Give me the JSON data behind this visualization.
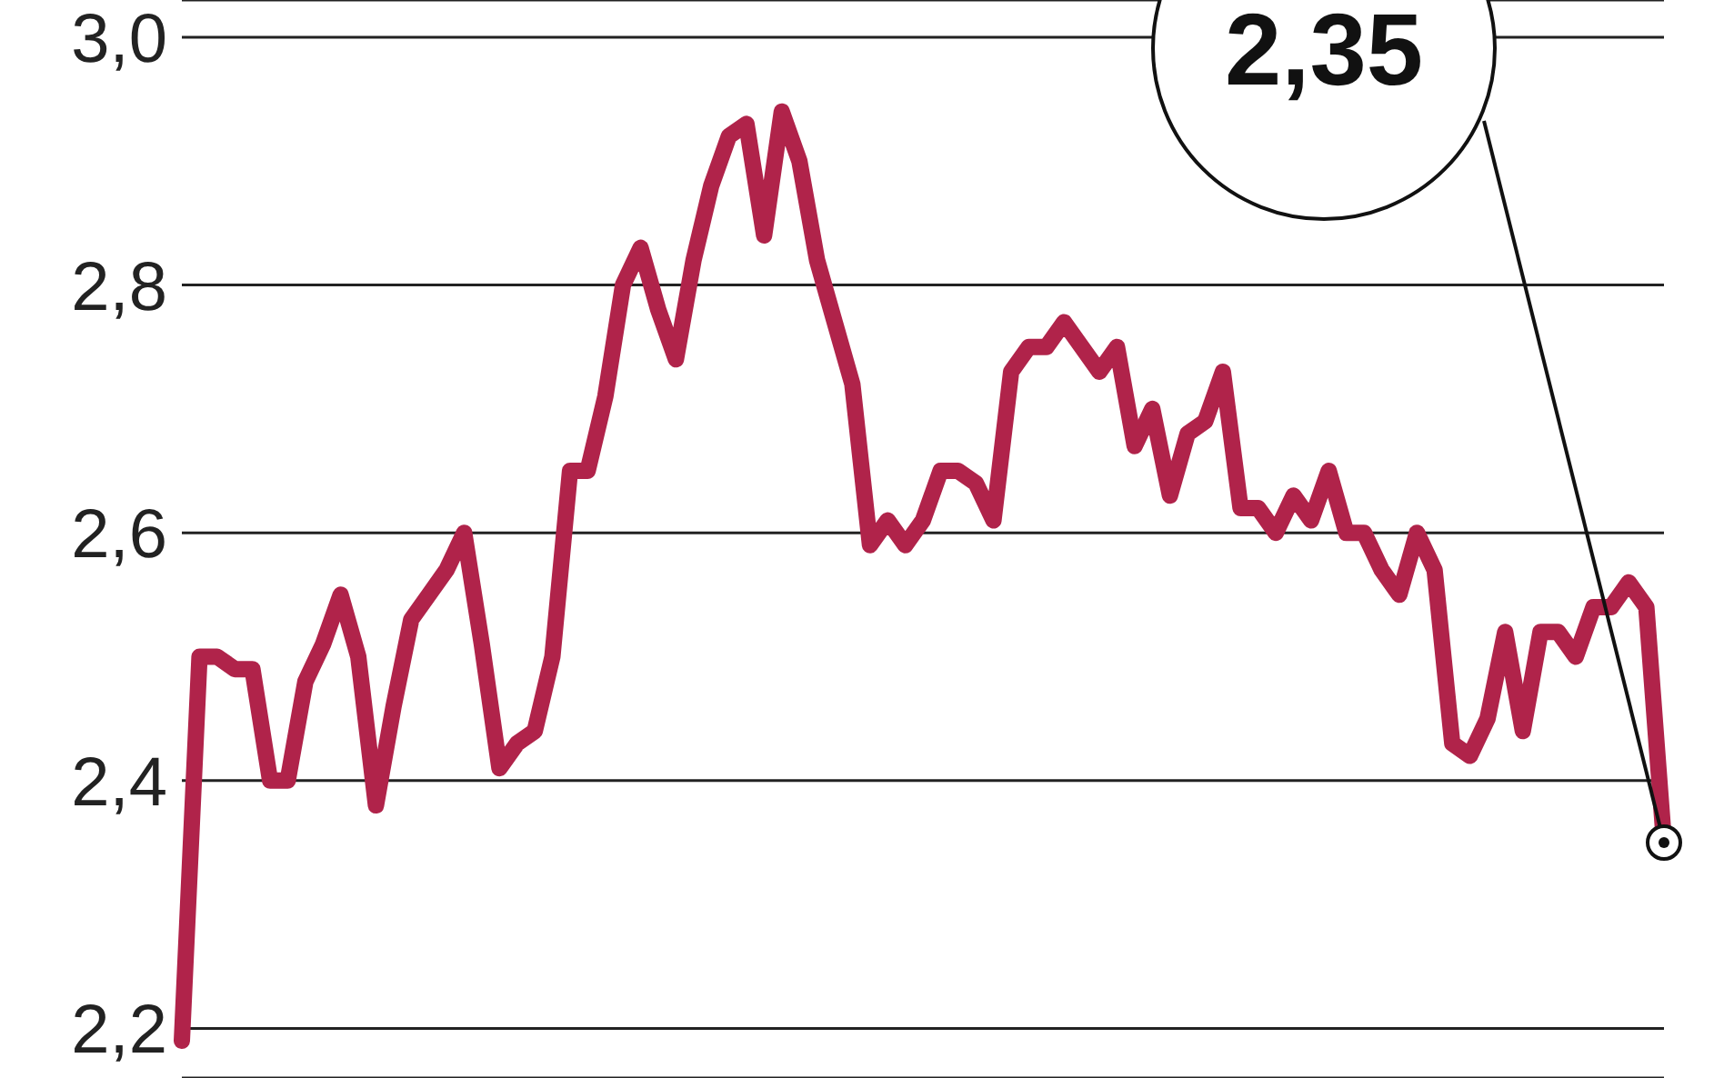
{
  "chart_data": {
    "type": "line",
    "categories": [
      null,
      null,
      null,
      null,
      null,
      null,
      null,
      null,
      null,
      null,
      null,
      null,
      null,
      null,
      null,
      null,
      null,
      null,
      null,
      null,
      null,
      null,
      null,
      null,
      null,
      null,
      null,
      null,
      null,
      null,
      null,
      null,
      null,
      null,
      null,
      null,
      null,
      null,
      null,
      null,
      null,
      null,
      null,
      null,
      null,
      null,
      null,
      null,
      null,
      null,
      null,
      null,
      null,
      null,
      null,
      null,
      null,
      null,
      null,
      null,
      null,
      null,
      null,
      null,
      null,
      null,
      null,
      null,
      null,
      null,
      null,
      null,
      null,
      null,
      null,
      null,
      null,
      null,
      null,
      null,
      null,
      null,
      null,
      null,
      null
    ],
    "series": [
      {
        "color": "#b0234a",
        "values": [
          2.19,
          2.5,
          2.5,
          2.49,
          2.49,
          2.4,
          2.4,
          2.48,
          2.51,
          2.55,
          2.5,
          2.38,
          2.46,
          2.53,
          2.55,
          2.57,
          2.6,
          2.51,
          2.41,
          2.43,
          2.44,
          2.5,
          2.65,
          2.65,
          2.71,
          2.8,
          2.83,
          2.78,
          2.74,
          2.82,
          2.88,
          2.92,
          2.93,
          2.84,
          2.94,
          2.9,
          2.82,
          2.77,
          2.72,
          2.59,
          2.61,
          2.59,
          2.61,
          2.65,
          2.65,
          2.64,
          2.61,
          2.73,
          2.75,
          2.75,
          2.77,
          2.75,
          2.73,
          2.75,
          2.67,
          2.7,
          2.63,
          2.68,
          2.69,
          2.73,
          2.62,
          2.62,
          2.6,
          2.63,
          2.61,
          2.65,
          2.6,
          2.6,
          2.57,
          2.55,
          2.6,
          2.57,
          2.43,
          2.42,
          2.45,
          2.52,
          2.44,
          2.52,
          2.52,
          2.5,
          2.54,
          2.54,
          2.56,
          2.54,
          2.35
        ]
      }
    ],
    "ylim": [
      2.16,
      3.03
    ],
    "yticks": [
      {
        "value": 2.2,
        "label": "2,2"
      },
      {
        "value": 2.4,
        "label": "2,4"
      },
      {
        "value": 2.6,
        "label": "2,6"
      },
      {
        "value": 2.8,
        "label": "2,8"
      },
      {
        "value": 3.0,
        "label": "3,0"
      }
    ],
    "grid": "y",
    "marker": "none",
    "line_style": "solid",
    "tick_labels": "y",
    "annotations": [
      "2,35"
    ]
  }
}
